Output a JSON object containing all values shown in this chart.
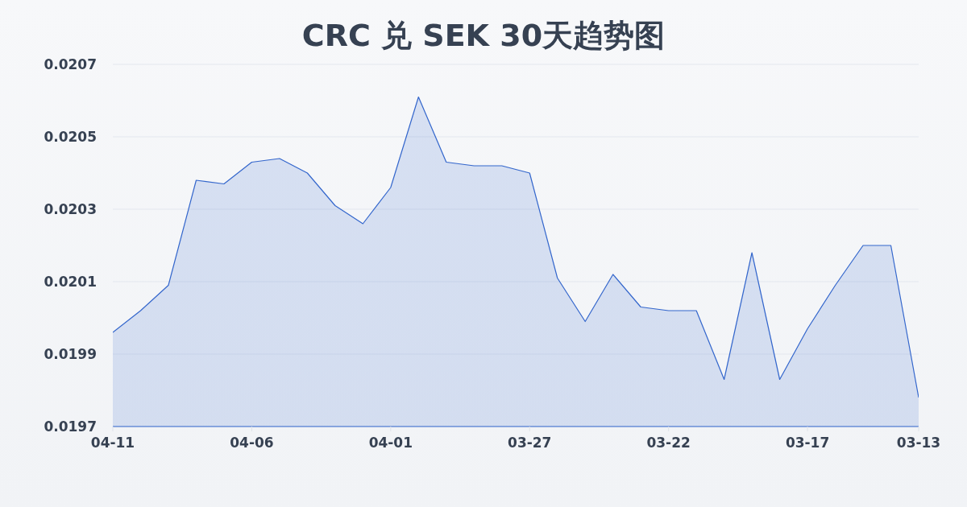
{
  "chart_data": {
    "type": "area",
    "title": "CRC 兑 SEK 30天趋势图",
    "categories": [
      "04-11",
      null,
      null,
      null,
      null,
      "04-06",
      null,
      null,
      null,
      null,
      "04-01",
      null,
      null,
      null,
      null,
      "03-27",
      null,
      null,
      null,
      null,
      "03-22",
      null,
      null,
      null,
      null,
      "03-17",
      null,
      null,
      null,
      "03-13"
    ],
    "values": [
      0.01996,
      0.02002,
      0.02009,
      0.02038,
      0.02037,
      0.02043,
      0.02044,
      0.0204,
      0.02031,
      0.02026,
      0.02036,
      0.02061,
      0.02043,
      0.02042,
      0.02042,
      0.0204,
      0.02011,
      0.01999,
      0.02012,
      0.02003,
      0.02002,
      0.02002,
      0.01983,
      0.02018,
      0.01983,
      0.01997,
      0.02009,
      0.0202,
      0.0202,
      0.01978
    ],
    "color": "#3366cc",
    "ylim": [
      0.0197,
      0.0207
    ],
    "yticks": [
      0.0197,
      0.0199,
      0.0201,
      0.0203,
      0.0205,
      0.0207
    ],
    "grid": "y"
  }
}
